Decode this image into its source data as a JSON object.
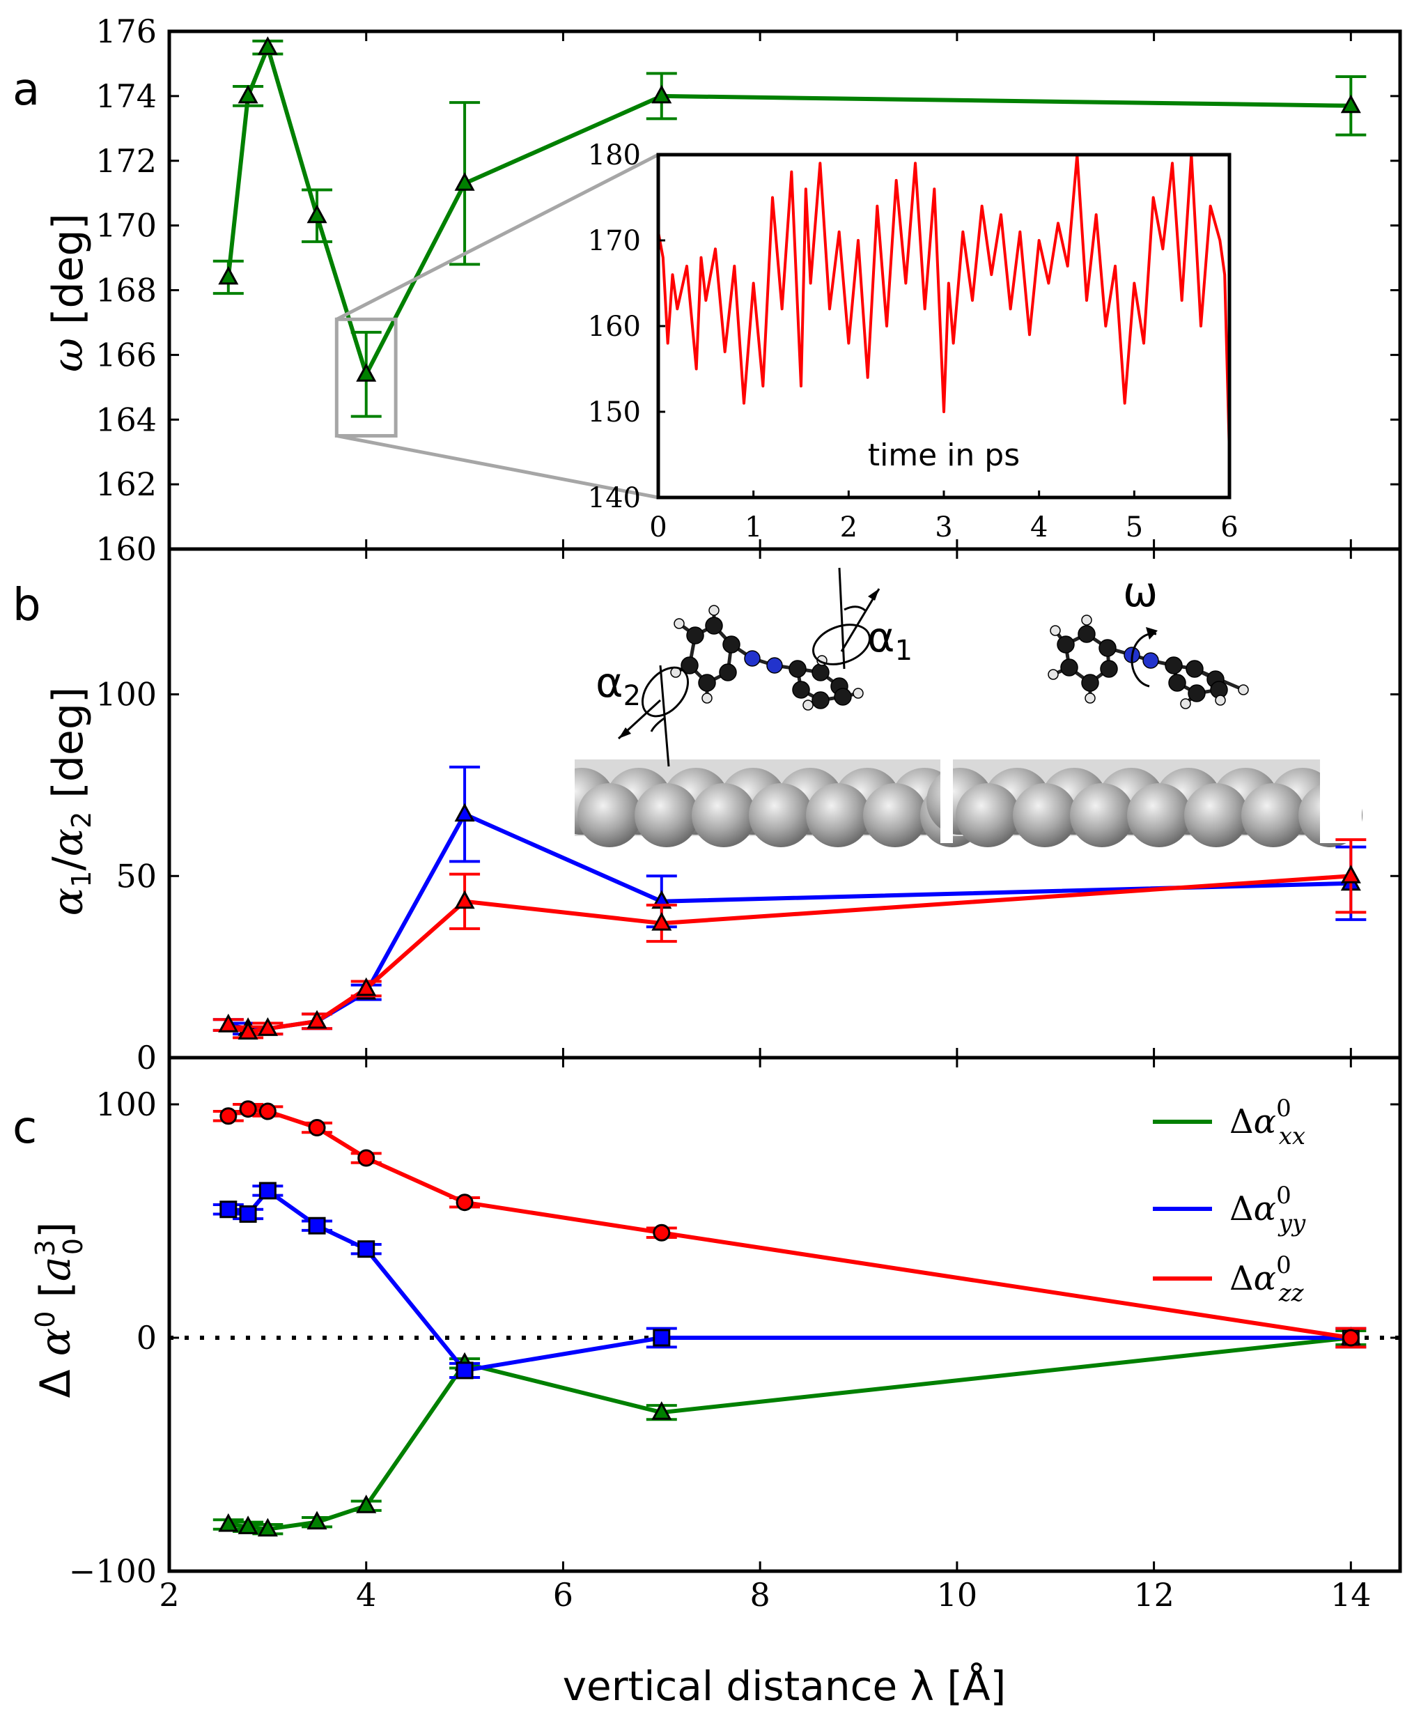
{
  "figure": {
    "xlabel": "vertical distance λ [Å]",
    "x_ticks": [
      "2",
      "4",
      "6",
      "8",
      "10",
      "12",
      "14"
    ]
  },
  "chart_data": [
    {
      "panel": "a",
      "type": "line",
      "ylabel": "ω [deg]",
      "xlim": [
        2,
        14.5
      ],
      "ylim": [
        160,
        176
      ],
      "y_ticks": [
        "160",
        "162",
        "164",
        "166",
        "168",
        "170",
        "172",
        "174",
        "176"
      ],
      "series": [
        {
          "name": "ω",
          "color": "#008000",
          "marker": "triangle",
          "x": [
            2.6,
            2.8,
            3.0,
            3.5,
            4.0,
            5.0,
            7.0,
            14.0
          ],
          "y": [
            168.4,
            174.0,
            175.5,
            170.3,
            165.4,
            171.3,
            174.0,
            173.7
          ],
          "err": [
            0.5,
            0.3,
            0.2,
            0.8,
            1.3,
            2.5,
            0.7,
            0.9
          ]
        }
      ],
      "zoom_box": {
        "x": [
          3.7,
          4.3
        ],
        "y": [
          163.5,
          167.1
        ]
      },
      "inset": {
        "type": "line",
        "label": "time in ps",
        "xlim": [
          0,
          6
        ],
        "ylim": [
          140,
          180
        ],
        "x_ticks": [
          "0",
          "1",
          "2",
          "3",
          "4",
          "5",
          "6"
        ],
        "y_ticks": [
          "140",
          "150",
          "160",
          "170",
          "180"
        ],
        "color": "#ff0000",
        "x": [
          0.0,
          0.05,
          0.1,
          0.15,
          0.2,
          0.3,
          0.4,
          0.45,
          0.5,
          0.6,
          0.7,
          0.8,
          0.9,
          1.0,
          1.1,
          1.2,
          1.3,
          1.4,
          1.5,
          1.55,
          1.6,
          1.7,
          1.8,
          1.9,
          2.0,
          2.1,
          2.2,
          2.3,
          2.4,
          2.5,
          2.6,
          2.7,
          2.8,
          2.9,
          3.0,
          3.05,
          3.1,
          3.2,
          3.3,
          3.4,
          3.5,
          3.6,
          3.7,
          3.8,
          3.9,
          4.0,
          4.1,
          4.2,
          4.3,
          4.4,
          4.5,
          4.6,
          4.7,
          4.8,
          4.9,
          5.0,
          5.1,
          5.2,
          5.3,
          5.4,
          5.5,
          5.6,
          5.7,
          5.8,
          5.9,
          5.95,
          6.0
        ],
        "y": [
          171,
          168,
          158,
          166,
          162,
          167,
          155,
          168,
          163,
          169,
          157,
          167,
          151,
          165,
          153,
          175,
          162,
          178,
          153,
          176,
          165,
          179,
          162,
          171,
          158,
          170,
          154,
          174,
          160,
          177,
          165,
          179,
          162,
          176,
          150,
          165,
          158,
          171,
          163,
          174,
          166,
          173,
          162,
          171,
          159,
          170,
          165,
          172,
          167,
          180,
          163,
          173,
          160,
          167,
          151,
          165,
          158,
          175,
          169,
          179,
          163,
          180,
          160,
          174,
          170,
          166,
          145
        ]
      }
    },
    {
      "panel": "b",
      "type": "line",
      "ylabel": "α1/α2 [deg]",
      "xlim": [
        2,
        14.5
      ],
      "ylim": [
        0,
        140
      ],
      "y_ticks": [
        "0",
        "50",
        "100"
      ],
      "series": [
        {
          "name": "α1",
          "color": "#0000ff",
          "marker": "triangle",
          "x": [
            2.6,
            2.8,
            3.0,
            3.5,
            4.0,
            5.0,
            7.0,
            14.0
          ],
          "y": [
            9,
            8,
            8,
            10,
            18,
            67,
            43,
            48
          ],
          "err": [
            1.5,
            1.5,
            1.5,
            2,
            2,
            13,
            7,
            10
          ]
        },
        {
          "name": "α2",
          "color": "#ff0000",
          "marker": "triangle",
          "x": [
            2.6,
            2.8,
            3.0,
            3.5,
            4.0,
            5.0,
            7.0,
            14.0
          ],
          "y": [
            9,
            7,
            8,
            10,
            19,
            43,
            37,
            50
          ],
          "err": [
            1.5,
            1.5,
            1.5,
            2,
            2,
            7.5,
            5,
            10
          ]
        }
      ],
      "molecule_labels": {
        "alpha1": "α1",
        "alpha2": "α2",
        "omega": "ω"
      }
    },
    {
      "panel": "c",
      "type": "line",
      "ylabel": "Δ α0 [a0^3]",
      "xlim": [
        2,
        14.5
      ],
      "ylim": [
        -100,
        120
      ],
      "y_ticks": [
        "−100",
        "0",
        "100"
      ],
      "legend_position": "top-right",
      "series": [
        {
          "name": "Δα0xx",
          "color": "#008000",
          "marker": "triangle",
          "x": [
            2.6,
            2.8,
            3.0,
            3.5,
            4.0,
            5.0,
            7.0,
            14.0
          ],
          "y": [
            -80,
            -81,
            -82,
            -79,
            -72,
            -11,
            -32,
            0
          ],
          "err": [
            2,
            2,
            2,
            2,
            2,
            2,
            3,
            3
          ]
        },
        {
          "name": "Δα0yy",
          "color": "#0000ff",
          "marker": "square",
          "x": [
            2.6,
            2.8,
            3.0,
            3.5,
            4.0,
            5.0,
            7.0,
            14.0
          ],
          "y": [
            55,
            53,
            63,
            48,
            38,
            -14,
            0,
            0
          ],
          "err": [
            2,
            2,
            2,
            2,
            2,
            3,
            4,
            4
          ]
        },
        {
          "name": "Δα0zz",
          "color": "#ff0000",
          "marker": "circle",
          "x": [
            2.6,
            2.8,
            3.0,
            3.5,
            4.0,
            5.0,
            7.0,
            14.0
          ],
          "y": [
            95,
            98,
            97,
            90,
            77,
            58,
            45,
            0
          ],
          "err": [
            2,
            2,
            2,
            2,
            2,
            2,
            2,
            4
          ]
        }
      ],
      "legend": [
        {
          "base": "Δα",
          "sup": "0",
          "sub": "xx",
          "color": "#008000"
        },
        {
          "base": "Δα",
          "sup": "0",
          "sub": "yy",
          "color": "#0000ff"
        },
        {
          "base": "Δα",
          "sup": "0",
          "sub": "zz",
          "color": "#ff0000"
        }
      ]
    }
  ]
}
